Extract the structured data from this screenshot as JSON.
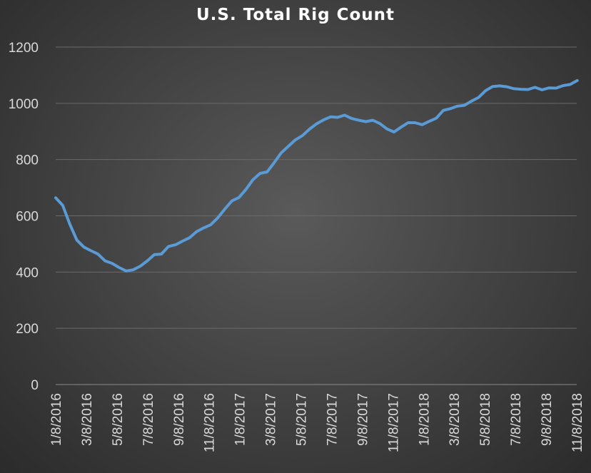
{
  "chart_data": {
    "type": "line",
    "title": "U.S. Total Rig Count",
    "xlabel": "",
    "ylabel": "",
    "ylim": [
      0,
      1200
    ],
    "yticks": [
      0,
      200,
      400,
      600,
      800,
      1000,
      1200
    ],
    "grid": true,
    "legend": "none",
    "x_tick_labels": [
      "1/8/2016",
      "3/8/2016",
      "5/8/2016",
      "7/8/2016",
      "9/8/2016",
      "11/8/2016",
      "1/8/2017",
      "3/8/2017",
      "5/8/2017",
      "7/8/2017",
      "9/8/2017",
      "11/8/2017",
      "1/8/2018",
      "3/8/2018",
      "5/8/2018",
      "7/8/2018",
      "9/8/2018",
      "11/8/2018"
    ],
    "series": [
      {
        "color": "#5b9bd5",
        "points": [
          [
            "2016-01-08",
            664
          ],
          [
            "2016-01-22",
            637
          ],
          [
            "2016-02-05",
            571
          ],
          [
            "2016-02-19",
            514
          ],
          [
            "2016-03-04",
            489
          ],
          [
            "2016-03-18",
            476
          ],
          [
            "2016-04-01",
            464
          ],
          [
            "2016-04-15",
            440
          ],
          [
            "2016-04-29",
            431
          ],
          [
            "2016-05-13",
            416
          ],
          [
            "2016-05-27",
            404
          ],
          [
            "2016-06-10",
            408
          ],
          [
            "2016-06-24",
            421
          ],
          [
            "2016-07-08",
            440
          ],
          [
            "2016-07-22",
            462
          ],
          [
            "2016-08-05",
            464
          ],
          [
            "2016-08-19",
            491
          ],
          [
            "2016-09-02",
            497
          ],
          [
            "2016-09-16",
            510
          ],
          [
            "2016-09-30",
            522
          ],
          [
            "2016-10-14",
            544
          ],
          [
            "2016-10-28",
            557
          ],
          [
            "2016-11-11",
            568
          ],
          [
            "2016-11-25",
            593
          ],
          [
            "2016-12-09",
            624
          ],
          [
            "2016-12-23",
            653
          ],
          [
            "2017-01-06",
            665
          ],
          [
            "2017-01-20",
            694
          ],
          [
            "2017-02-03",
            729
          ],
          [
            "2017-02-17",
            751
          ],
          [
            "2017-03-03",
            756
          ],
          [
            "2017-03-17",
            789
          ],
          [
            "2017-03-31",
            824
          ],
          [
            "2017-04-14",
            847
          ],
          [
            "2017-04-28",
            870
          ],
          [
            "2017-05-12",
            885
          ],
          [
            "2017-05-26",
            908
          ],
          [
            "2017-06-09",
            927
          ],
          [
            "2017-06-23",
            941
          ],
          [
            "2017-07-07",
            952
          ],
          [
            "2017-07-21",
            950
          ],
          [
            "2017-08-04",
            958
          ],
          [
            "2017-08-18",
            946
          ],
          [
            "2017-09-01",
            940
          ],
          [
            "2017-09-15",
            935
          ],
          [
            "2017-09-29",
            940
          ],
          [
            "2017-10-13",
            928
          ],
          [
            "2017-10-27",
            909
          ],
          [
            "2017-11-10",
            898
          ],
          [
            "2017-11-24",
            915
          ],
          [
            "2017-12-08",
            931
          ],
          [
            "2017-12-22",
            931
          ],
          [
            "2018-01-05",
            924
          ],
          [
            "2018-01-19",
            936
          ],
          [
            "2018-02-02",
            947
          ],
          [
            "2018-02-16",
            975
          ],
          [
            "2018-03-02",
            981
          ],
          [
            "2018-03-16",
            990
          ],
          [
            "2018-03-30",
            993
          ],
          [
            "2018-04-13",
            1008
          ],
          [
            "2018-04-27",
            1021
          ],
          [
            "2018-05-11",
            1045
          ],
          [
            "2018-05-25",
            1060
          ],
          [
            "2018-06-08",
            1062
          ],
          [
            "2018-06-22",
            1059
          ],
          [
            "2018-07-06",
            1052
          ],
          [
            "2018-07-20",
            1050
          ],
          [
            "2018-08-03",
            1049
          ],
          [
            "2018-08-17",
            1057
          ],
          [
            "2018-08-31",
            1048
          ],
          [
            "2018-09-14",
            1055
          ],
          [
            "2018-09-28",
            1054
          ],
          [
            "2018-10-12",
            1063
          ],
          [
            "2018-10-26",
            1067
          ],
          [
            "2018-11-09",
            1081
          ]
        ]
      }
    ]
  }
}
